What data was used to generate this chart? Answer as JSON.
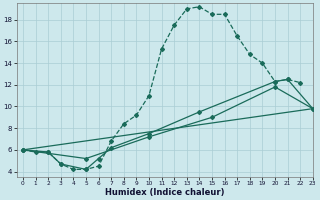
{
  "xlabel": "Humidex (Indice chaleur)",
  "bg_color": "#cde8ec",
  "grid_color": "#aacdd4",
  "line_color": "#1a6b5a",
  "xlim": [
    -0.5,
    23
  ],
  "ylim": [
    3.5,
    19.5
  ],
  "xticks": [
    0,
    1,
    2,
    3,
    4,
    5,
    6,
    7,
    8,
    9,
    10,
    11,
    12,
    13,
    14,
    15,
    16,
    17,
    18,
    19,
    20,
    21,
    22,
    23
  ],
  "yticks": [
    4,
    6,
    8,
    10,
    12,
    14,
    16,
    18
  ],
  "series1_x": [
    0,
    1,
    2,
    3,
    4,
    5,
    6,
    7,
    8,
    9,
    10,
    11,
    12,
    13,
    14,
    15,
    16,
    17,
    18,
    19,
    20,
    21,
    22
  ],
  "series1_y": [
    6.0,
    5.8,
    5.8,
    4.7,
    4.2,
    4.2,
    4.5,
    6.8,
    8.4,
    9.2,
    11.0,
    15.3,
    17.5,
    19.0,
    19.2,
    18.5,
    18.5,
    16.5,
    14.8,
    14.0,
    12.3,
    12.5,
    12.2
  ],
  "series2_x": [
    0,
    2,
    3,
    5,
    6,
    7,
    10,
    14,
    20,
    21,
    23
  ],
  "series2_y": [
    6.0,
    5.8,
    4.7,
    4.2,
    5.2,
    6.2,
    7.5,
    9.5,
    12.3,
    12.5,
    9.8
  ],
  "series3_x": [
    0,
    23
  ],
  "series3_y": [
    6.0,
    9.8
  ],
  "series4_x": [
    0,
    5,
    10,
    15,
    20,
    23
  ],
  "series4_y": [
    6.0,
    5.2,
    7.2,
    9.0,
    11.8,
    9.8
  ]
}
